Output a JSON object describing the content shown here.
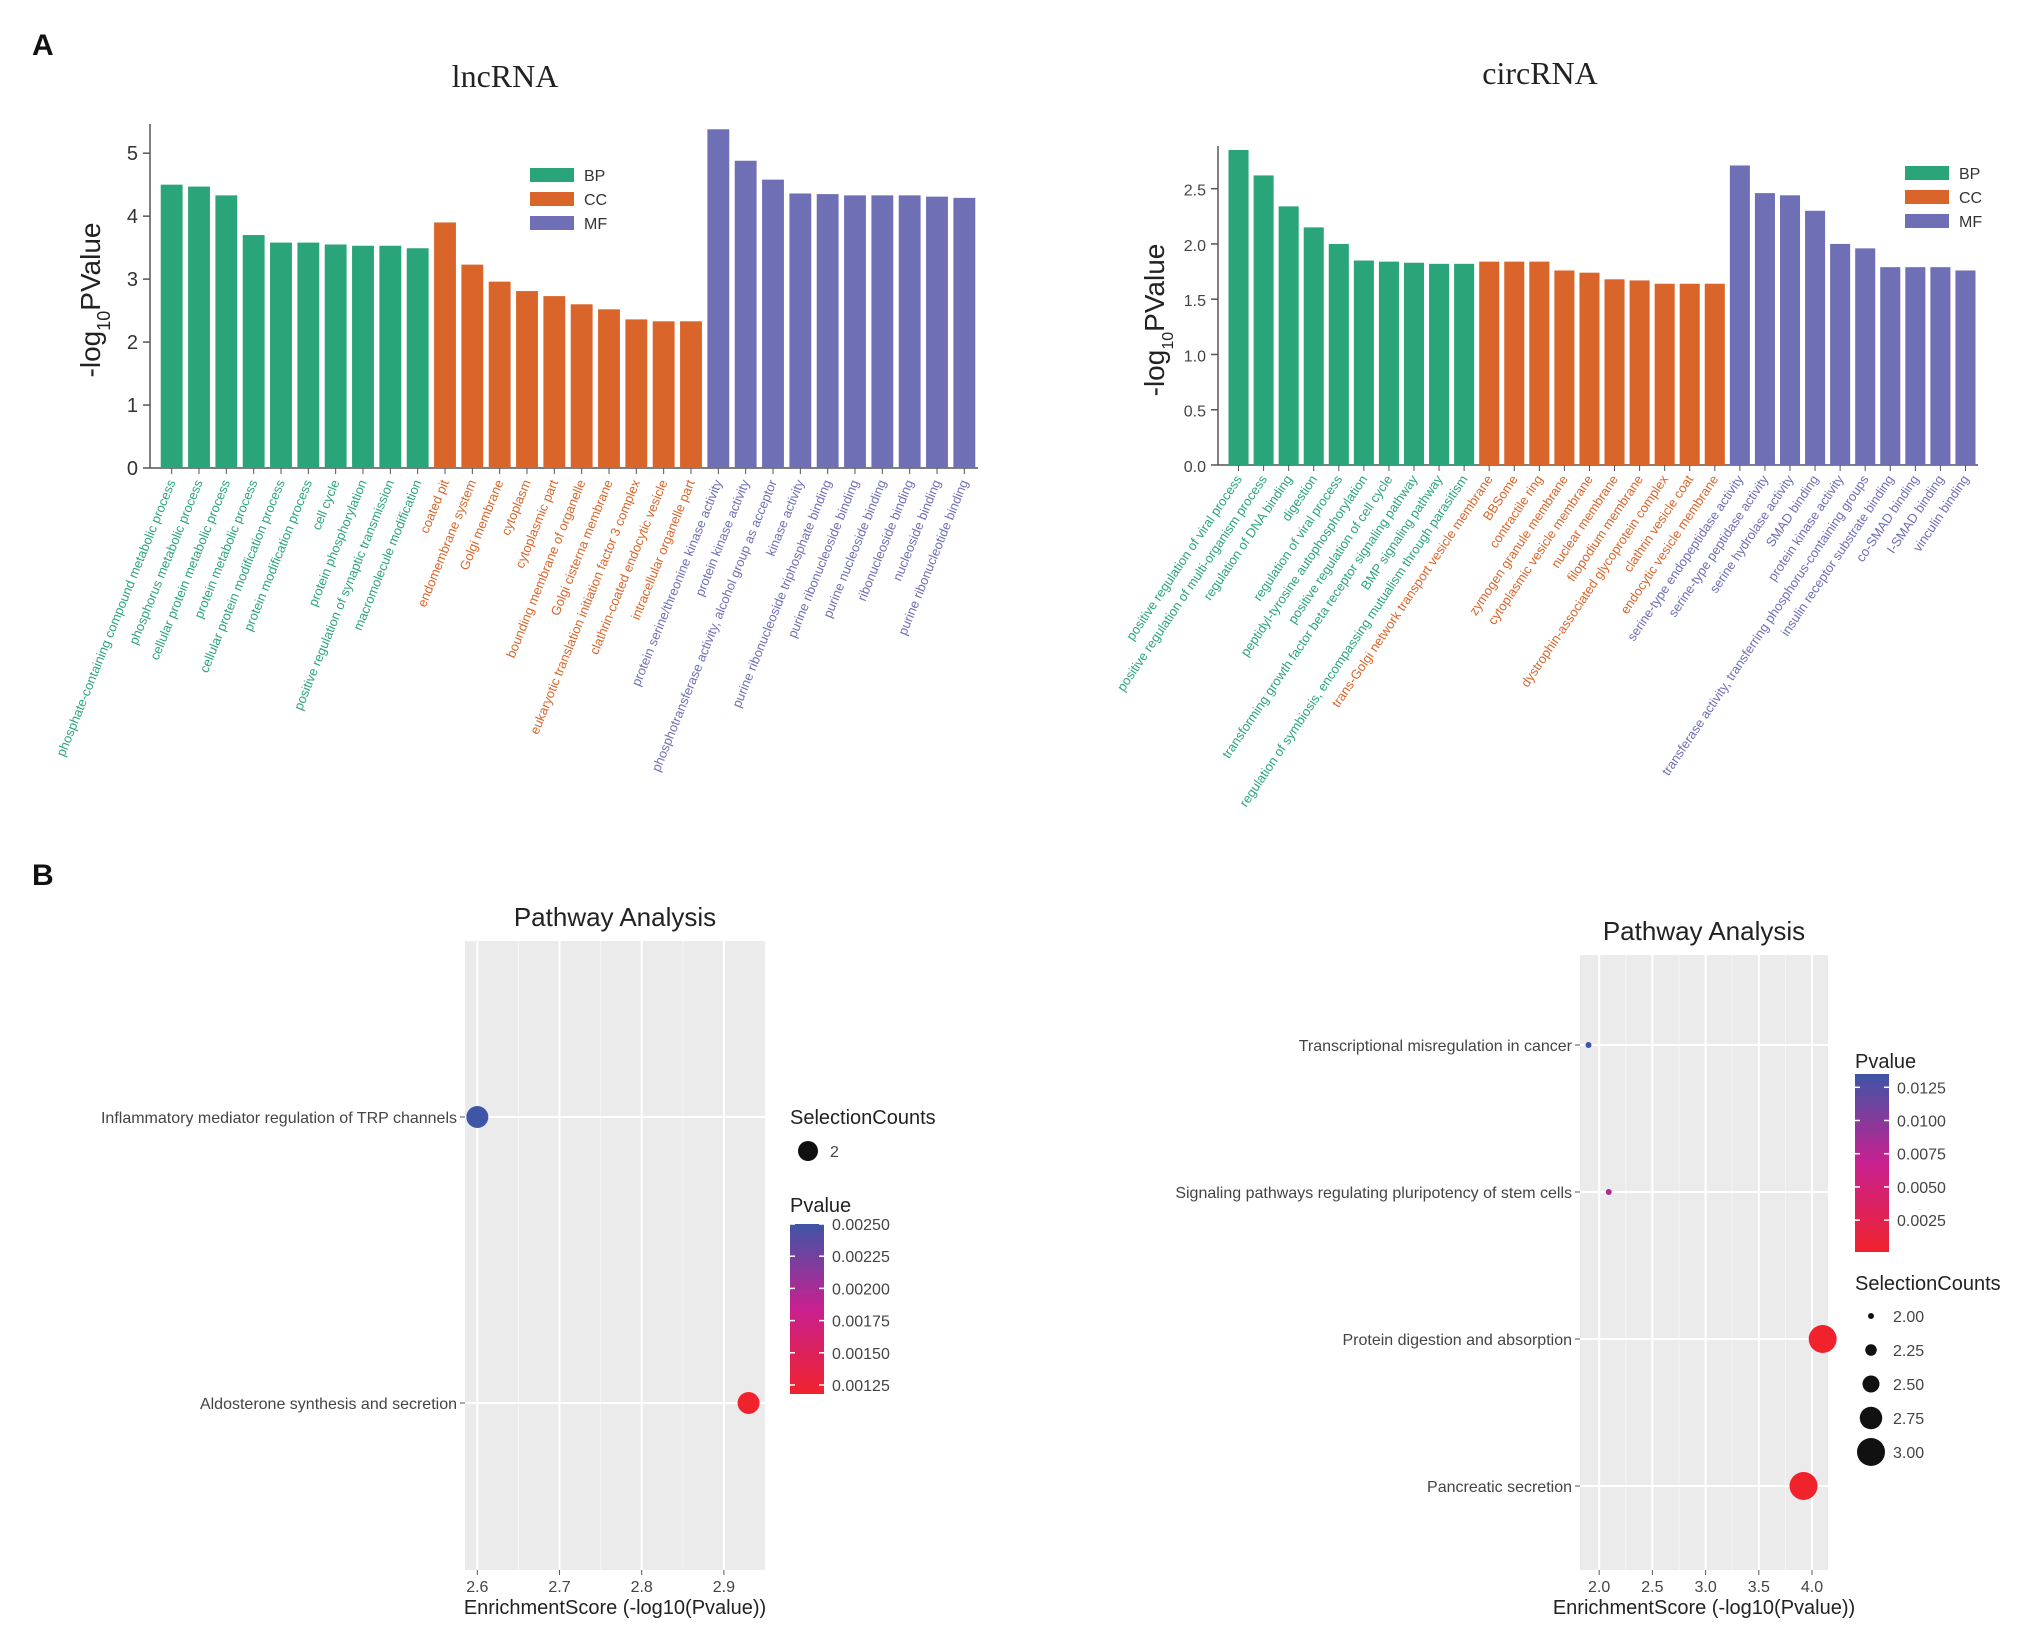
{
  "panel_labels": {
    "a": "A",
    "b": "B"
  },
  "category_colors": {
    "BP": "#2aa57a",
    "CC": "#d9652a",
    "MF": "#6f6fb5"
  },
  "chart_data": [
    {
      "id": "lnc",
      "type": "bar",
      "title": "lncRNA",
      "ylabel_main": "-log",
      "ylabel_sub": "10",
      "ylabel_tail": "PValue",
      "ylim": [
        0,
        5.4
      ],
      "yticks": [
        0,
        1,
        2,
        3,
        4,
        5
      ],
      "legend": [
        "BP",
        "CC",
        "MF"
      ],
      "categories": [
        {
          "label": "phosphate-containing compound metabolic process",
          "group": "BP",
          "value": 4.5
        },
        {
          "label": "phosphorus metabolic process",
          "group": "BP",
          "value": 4.47
        },
        {
          "label": "cellular protein metabolic process",
          "group": "BP",
          "value": 4.33
        },
        {
          "label": "protein metabolic process",
          "group": "BP",
          "value": 3.7
        },
        {
          "label": "cellular protein modification process",
          "group": "BP",
          "value": 3.58
        },
        {
          "label": "protein modification process",
          "group": "BP",
          "value": 3.58
        },
        {
          "label": "cell cycle",
          "group": "BP",
          "value": 3.55
        },
        {
          "label": "protein phosphorylation",
          "group": "BP",
          "value": 3.53
        },
        {
          "label": "positive regulation of synaptic transmission",
          "group": "BP",
          "value": 3.53
        },
        {
          "label": "macromolecule modification",
          "group": "BP",
          "value": 3.49
        },
        {
          "label": "coated pit",
          "group": "CC",
          "value": 3.9
        },
        {
          "label": "endomembrane system",
          "group": "CC",
          "value": 3.23
        },
        {
          "label": "Golgi membrane",
          "group": "CC",
          "value": 2.96
        },
        {
          "label": "cytoplasm",
          "group": "CC",
          "value": 2.81
        },
        {
          "label": "cytoplasmic part",
          "group": "CC",
          "value": 2.73
        },
        {
          "label": "bounding membrane of organelle",
          "group": "CC",
          "value": 2.6
        },
        {
          "label": "Golgi cisterna membrane",
          "group": "CC",
          "value": 2.52
        },
        {
          "label": "eukaryotic translation initiation factor 3 complex",
          "group": "CC",
          "value": 2.36
        },
        {
          "label": "clathrin-coated endocytic vesicle",
          "group": "CC",
          "value": 2.33
        },
        {
          "label": "intracellular organelle part",
          "group": "CC",
          "value": 2.33
        },
        {
          "label": "protein serine/threonine kinase activity",
          "group": "MF",
          "value": 5.38
        },
        {
          "label": "protein kinase activity",
          "group": "MF",
          "value": 4.88
        },
        {
          "label": "phosphotransferase activity, alcohol group as acceptor",
          "group": "MF",
          "value": 4.58
        },
        {
          "label": "kinase activity",
          "group": "MF",
          "value": 4.36
        },
        {
          "label": "purine ribonucleoside triphosphate binding",
          "group": "MF",
          "value": 4.35
        },
        {
          "label": "purine ribonucleoside binding",
          "group": "MF",
          "value": 4.33
        },
        {
          "label": "purine nucleoside binding",
          "group": "MF",
          "value": 4.33
        },
        {
          "label": "ribonucleoside binding",
          "group": "MF",
          "value": 4.33
        },
        {
          "label": "nucleoside binding",
          "group": "MF",
          "value": 4.31
        },
        {
          "label": "purine ribonucleotide binding",
          "group": "MF",
          "value": 4.29
        }
      ]
    },
    {
      "id": "circ",
      "type": "bar",
      "title": "circRNA",
      "ylabel_main": "-log",
      "ylabel_sub": "10",
      "ylabel_tail": "PValue",
      "ylim": [
        0,
        2.85
      ],
      "yticks": [
        "0.0",
        "0.5",
        "1.0",
        "1.5",
        "2.0",
        "2.5"
      ],
      "legend": [
        "BP",
        "CC",
        "MF"
      ],
      "categories": [
        {
          "label": "positive regulation of viral process",
          "group": "BP",
          "value": 2.85
        },
        {
          "label": "positive regulation of multi-organism process",
          "group": "BP",
          "value": 2.62
        },
        {
          "label": "regulation of DNA binding",
          "group": "BP",
          "value": 2.34
        },
        {
          "label": "digestion",
          "group": "BP",
          "value": 2.15
        },
        {
          "label": "regulation of viral process",
          "group": "BP",
          "value": 2.0
        },
        {
          "label": "peptidyl-tyrosine autophosphorylation",
          "group": "BP",
          "value": 1.85
        },
        {
          "label": "positive regulation of cell cycle",
          "group": "BP",
          "value": 1.84
        },
        {
          "label": "transforming growth factor beta receptor signaling pathway",
          "group": "BP",
          "value": 1.83
        },
        {
          "label": "BMP signaling pathway",
          "group": "BP",
          "value": 1.82
        },
        {
          "label": "regulation of symbiosis, encompassing mutualism through parasitism",
          "group": "BP",
          "value": 1.82
        },
        {
          "label": "trans-Golgi network transport vesicle membrane",
          "group": "CC",
          "value": 1.84
        },
        {
          "label": "BBSome",
          "group": "CC",
          "value": 1.84
        },
        {
          "label": "contractile ring",
          "group": "CC",
          "value": 1.84
        },
        {
          "label": "zymogen granule membrane",
          "group": "CC",
          "value": 1.76
        },
        {
          "label": "cytoplasmic vesicle membrane",
          "group": "CC",
          "value": 1.74
        },
        {
          "label": "nuclear membrane",
          "group": "CC",
          "value": 1.68
        },
        {
          "label": "filopodium membrane",
          "group": "CC",
          "value": 1.67
        },
        {
          "label": "dystrophin-associated glycoprotein complex",
          "group": "CC",
          "value": 1.64
        },
        {
          "label": "clathrin vesicle coat",
          "group": "CC",
          "value": 1.64
        },
        {
          "label": "endocytic vesicle membrane",
          "group": "CC",
          "value": 1.64
        },
        {
          "label": "serine-type endopeptidase activity",
          "group": "MF",
          "value": 2.71
        },
        {
          "label": "serine-type peptidase activity",
          "group": "MF",
          "value": 2.46
        },
        {
          "label": "serine hydrolase activity",
          "group": "MF",
          "value": 2.44
        },
        {
          "label": "SMAD binding",
          "group": "MF",
          "value": 2.3
        },
        {
          "label": "protein kinase activity",
          "group": "MF",
          "value": 2.0
        },
        {
          "label": "transferase activity, transferring phosphorus-containing groups",
          "group": "MF",
          "value": 1.96
        },
        {
          "label": "insulin receptor substrate binding",
          "group": "MF",
          "value": 1.79
        },
        {
          "label": "co-SMAD binding",
          "group": "MF",
          "value": 1.79
        },
        {
          "label": "I-SMAD binding",
          "group": "MF",
          "value": 1.79
        },
        {
          "label": "vinculin binding",
          "group": "MF",
          "value": 1.76
        }
      ]
    },
    {
      "id": "pathL",
      "type": "scatter",
      "title": "Pathway Analysis",
      "xlabel": "EnrichmentScore (-log10(Pvalue))",
      "xlim": [
        2.585,
        2.95
      ],
      "xticks": [
        "2.6",
        "2.7",
        "2.8",
        "2.9"
      ],
      "pathways": [
        "Inflammatory mediator regulation of TRP channels",
        "Aldosterone synthesis and secretion"
      ],
      "points": [
        {
          "pathway": "Inflammatory mediator regulation of TRP channels",
          "x": 2.6,
          "pvalue": 0.0025,
          "count": 2
        },
        {
          "pathway": "Aldosterone synthesis and secretion",
          "x": 2.93,
          "pvalue": 0.00118,
          "count": 2
        }
      ],
      "size_legend": {
        "title": "SelectionCounts",
        "values": [
          "2"
        ]
      },
      "color_legend": {
        "title": "Pvalue",
        "values": [
          "0.00250",
          "0.00225",
          "0.00200",
          "0.00175",
          "0.00150",
          "0.00125"
        ],
        "range": [
          0.00118,
          0.0025
        ]
      }
    },
    {
      "id": "pathR",
      "type": "scatter",
      "title": "Pathway Analysis",
      "xlabel": "EnrichmentScore (-log10(Pvalue))",
      "xlim": [
        1.82,
        4.15
      ],
      "xticks": [
        "2.0",
        "2.5",
        "3.0",
        "3.5",
        "4.0"
      ],
      "pathways": [
        "Transcriptional misregulation in cancer",
        "Signaling pathways regulating pluripotency of stem cells",
        "Protein digestion and absorption",
        "Pancreatic secretion"
      ],
      "points": [
        {
          "pathway": "Transcriptional misregulation in cancer",
          "x": 1.9,
          "pvalue": 0.0135,
          "count": 2
        },
        {
          "pathway": "Signaling pathways regulating pluripotency of stem cells",
          "x": 2.09,
          "pvalue": 0.0082,
          "count": 2
        },
        {
          "pathway": "Protein digestion and absorption",
          "x": 4.1,
          "pvalue": 0.0001,
          "count": 3
        },
        {
          "pathway": "Pancreatic secretion",
          "x": 3.92,
          "pvalue": 0.0001,
          "count": 3
        }
      ],
      "color_legend": {
        "title": "Pvalue",
        "values": [
          "0.0125",
          "0.0100",
          "0.0075",
          "0.0050",
          "0.0025"
        ],
        "range": [
          0.0001,
          0.0135
        ]
      },
      "size_legend": {
        "title": "SelectionCounts",
        "values": [
          "2.00",
          "2.25",
          "2.50",
          "2.75",
          "3.00"
        ]
      }
    }
  ]
}
